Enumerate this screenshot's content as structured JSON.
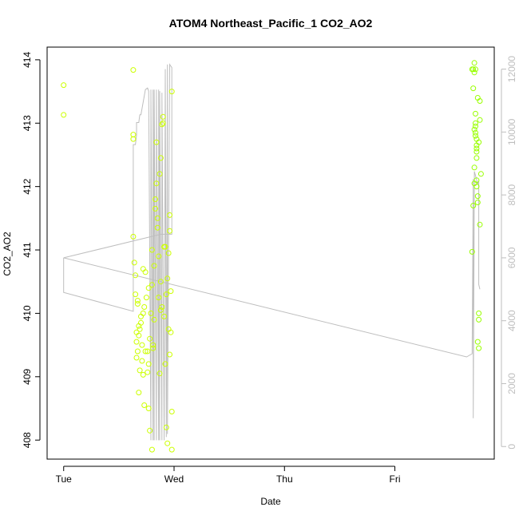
{
  "chart_data": {
    "type": "scatter",
    "title": "ATOM4 Northeast_Pacific_1 CO2_AO2",
    "xlabel": "Date",
    "ylabel": "CO2_AO2",
    "x_ticks": [
      "Tue",
      "Wed",
      "Thu",
      "Fri"
    ],
    "x_tick_days": [
      0,
      1,
      2,
      3
    ],
    "xlim_days": [
      -0.15,
      3.9
    ],
    "ylim": [
      407.7,
      414.2
    ],
    "y_ticks": [
      408,
      409,
      410,
      411,
      412,
      413,
      414
    ],
    "y2_ticks": [
      0,
      2000,
      4000,
      6000,
      8000,
      10000,
      12000
    ],
    "y2lim": [
      -400,
      12700
    ],
    "grid": false,
    "series": [
      {
        "kind": "points",
        "color": "#ccff00",
        "x_days": [
          0.0,
          0.0,
          0.63,
          0.63,
          0.63,
          0.63,
          0.64,
          0.65,
          0.65,
          0.66,
          0.66,
          0.66,
          0.67,
          0.67,
          0.68,
          0.68,
          0.69,
          0.7,
          0.71,
          0.72,
          0.72,
          0.73,
          0.74,
          0.75,
          0.76,
          0.77,
          0.77,
          0.78,
          0.79,
          0.8,
          0.8,
          0.81,
          0.82,
          0.83,
          0.84,
          0.84,
          0.85,
          0.86,
          0.87,
          0.88,
          0.88,
          0.89,
          0.9,
          0.9,
          0.91,
          0.92,
          0.93,
          0.94,
          0.95,
          0.96,
          0.96,
          0.97,
          0.98,
          0.98,
          0.98,
          0.67,
          0.69,
          0.71,
          0.74,
          0.78,
          0.81,
          0.85,
          0.88,
          0.91,
          0.94,
          0.96,
          0.7,
          0.73,
          0.77,
          0.8,
          0.83,
          0.86,
          0.89,
          0.92,
          0.95,
          0.97,
          0.68,
          0.72,
          0.76,
          0.82,
          0.87,
          0.93
        ],
        "y": [
          413.6,
          413.13,
          413.84,
          412.82,
          412.75,
          411.21,
          410.8,
          410.6,
          410.3,
          409.55,
          409.3,
          409.7,
          410.2,
          409.4,
          409.65,
          408.75,
          409.1,
          409.85,
          409.5,
          410.0,
          409.03,
          408.55,
          409.4,
          410.25,
          409.07,
          408.5,
          410.4,
          408.15,
          410.0,
          407.85,
          410.45,
          409.5,
          409.9,
          411.8,
          412.05,
          412.7,
          411.35,
          410.9,
          412.2,
          410.5,
          412.45,
          412.98,
          413.1,
          413.0,
          411.05,
          409.2,
          408.2,
          407.95,
          410.95,
          411.3,
          411.55,
          410.35,
          413.5,
          408.45,
          407.85,
          410.15,
          409.75,
          409.25,
          410.65,
          409.6,
          409.45,
          411.5,
          410.05,
          409.95,
          410.55,
          409.35,
          409.95,
          410.1,
          409.2,
          411.0,
          411.65,
          410.25,
          410.1,
          411.05,
          409.75,
          409.7,
          409.8,
          410.7,
          409.4,
          410.75,
          409.05,
          410.3
        ]
      },
      {
        "kind": "points",
        "color": "#99ff00",
        "x_days": [
          3.7,
          3.71,
          3.71,
          3.72,
          3.72,
          3.72,
          3.73,
          3.73,
          3.73,
          3.73,
          3.74,
          3.74,
          3.74,
          3.74,
          3.74,
          3.75,
          3.75,
          3.75,
          3.76,
          3.76,
          3.76,
          3.77,
          3.77,
          3.77,
          3.78,
          3.7,
          3.71,
          3.72,
          3.73,
          3.74,
          3.75,
          3.76,
          3.72,
          3.73,
          3.74
        ],
        "y": [
          413.85,
          413.85,
          413.55,
          413.95,
          413.8,
          412.3,
          413.15,
          412.95,
          412.85,
          412.8,
          412.65,
          412.55,
          412.45,
          412.1,
          412.0,
          411.85,
          411.75,
          409.55,
          409.45,
          409.9,
          410.0,
          411.4,
          413.35,
          413.05,
          412.2,
          410.97,
          411.7,
          412.9,
          413.0,
          412.6,
          413.4,
          412.7,
          412.05,
          413.85,
          412.75
        ]
      },
      {
        "kind": "line",
        "axis": "right",
        "color": "#bebebe",
        "x_days": [
          0.0,
          0.0,
          0.0,
          0.63,
          0.63,
          0.63,
          0.65,
          0.66,
          0.66,
          0.68,
          0.69,
          0.7,
          0.74,
          0.74,
          0.76,
          0.76,
          0.77,
          0.79,
          0.79,
          0.81,
          0.81,
          0.82,
          0.82,
          0.84,
          0.84,
          0.86,
          0.86,
          0.87,
          0.87,
          0.89,
          0.89,
          0.91,
          0.92,
          0.93,
          0.94,
          0.94,
          0.96,
          0.98,
          0.98,
          0.88,
          0.0,
          3.65,
          3.7,
          3.71,
          3.71,
          3.72,
          3.72,
          3.75,
          3.76,
          3.76,
          3.77
        ],
        "y": [
          6000,
          5850,
          4900,
          4300,
          4850,
          9600,
          9600,
          9900,
          10300,
          10300,
          10550,
          10550,
          11350,
          11350,
          11400,
          11400,
          11300,
          200,
          11350,
          200,
          11350,
          200,
          11350,
          200,
          11350,
          200,
          11350,
          200,
          11300,
          200,
          11250,
          200,
          12000,
          300,
          12150,
          400,
          12150,
          12050,
          6750,
          6750,
          6000,
          2850,
          2950,
          8500,
          900,
          8450,
          8750,
          8350,
          8450,
          5150,
          5000
        ]
      }
    ]
  }
}
